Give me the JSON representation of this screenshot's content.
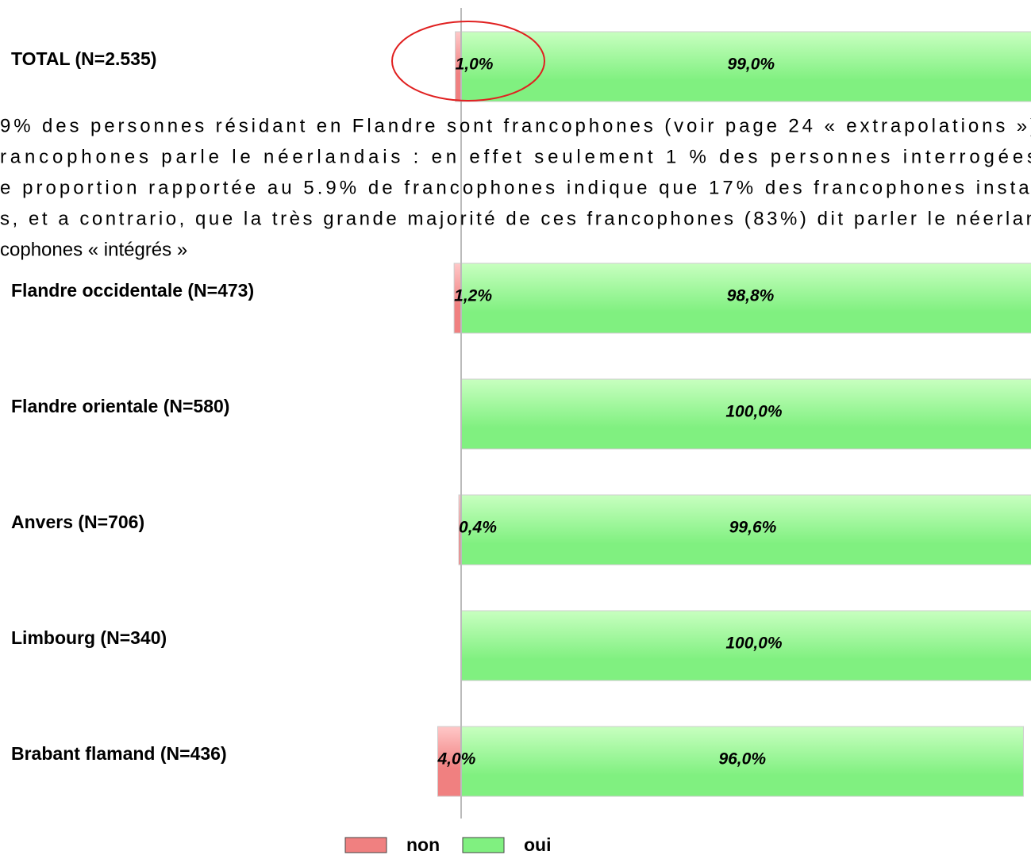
{
  "chart_data": {
    "type": "diverging_bar",
    "categories": [
      "TOTAL (N=2.535)",
      "Flandre occidentale (N=473)",
      "Flandre orientale (N=580)",
      "Anvers (N=706)",
      "Limbourg (N=340)",
      "Brabant flamand (N=436)"
    ],
    "series": [
      {
        "name": "non",
        "color": "#f08080",
        "values": [
          1.0,
          1.2,
          0,
          0.4,
          0,
          4.0
        ],
        "value_labels": [
          "1,0%",
          "1,2%",
          null,
          "0,4%",
          null,
          "4,0%"
        ]
      },
      {
        "name": "oui",
        "color": "#80f080",
        "values": [
          99.0,
          98.8,
          100.0,
          99.6,
          100.0,
          96.0
        ],
        "value_labels": [
          "99,0%",
          "98,8%",
          "100,0%",
          "99,6%",
          "100,0%",
          "96,0%"
        ]
      }
    ],
    "annotations": [
      "9% des personnes résidant en Flandre sont francophones (voir page 24 « extrapolations »)",
      "rancophones parle le néerlandais : en effet seulement  1 % des personnes interrogées",
      "e proportion rapportée au 5.9% de francophones indique que 17% des francophones instal",
      "s, et a contrario, que la très grande majorité de ces francophones (83%) dit parler le néerlan",
      "cophones « intégrés »"
    ],
    "legend": "bottom"
  }
}
